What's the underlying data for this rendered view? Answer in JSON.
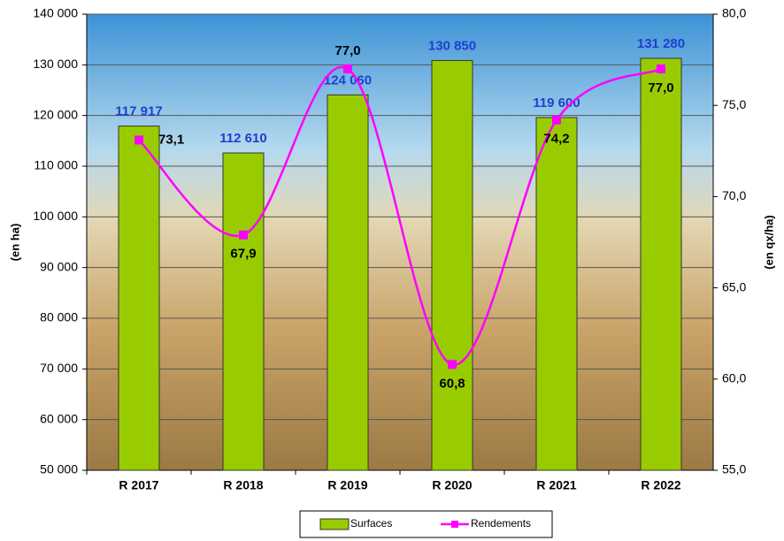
{
  "chart_data": {
    "type": "bar",
    "categories": [
      "R 2017",
      "R 2018",
      "R 2019",
      "R 2020",
      "R 2021",
      "R 2022"
    ],
    "series": [
      {
        "name": "Surfaces",
        "type": "bar",
        "color": "#99cc00",
        "values": [
          117917,
          112610,
          124060,
          130850,
          119600,
          131280
        ],
        "value_labels": [
          "117 917",
          "112 610",
          "124 060",
          "130 850",
          "119 600",
          "131 280"
        ]
      },
      {
        "name": "Rendements",
        "type": "line",
        "axis": "y2",
        "color": "#ff00ff",
        "values": [
          73.1,
          67.9,
          77.0,
          60.8,
          74.2,
          77.0
        ],
        "value_labels": [
          "73,1",
          "67,9",
          "77,0",
          "60,8",
          "74,2",
          "77,0"
        ]
      }
    ],
    "y_label": "(en ha)",
    "y2_label": "(en qx/ha)",
    "ylim": [
      50000,
      140000
    ],
    "yticks": [
      {
        "value": 50000,
        "label": "50 000"
      },
      {
        "value": 60000,
        "label": "60 000"
      },
      {
        "value": 70000,
        "label": "70 000"
      },
      {
        "value": 80000,
        "label": "80 000"
      },
      {
        "value": 90000,
        "label": "90 000"
      },
      {
        "value": 100000,
        "label": "100 000"
      },
      {
        "value": 110000,
        "label": "110 000"
      },
      {
        "value": 120000,
        "label": "120 000"
      },
      {
        "value": 130000,
        "label": "130 000"
      },
      {
        "value": 140000,
        "label": "140 000"
      }
    ],
    "y2lim": [
      55,
      80
    ],
    "y2ticks": [
      {
        "value": 55,
        "label": "55,0"
      },
      {
        "value": 60,
        "label": "60,0"
      },
      {
        "value": 65,
        "label": "65,0"
      },
      {
        "value": 70,
        "label": "70,0"
      },
      {
        "value": 75,
        "label": "75,0"
      },
      {
        "value": 80,
        "label": "80,0"
      }
    ],
    "grid": true,
    "legend": "bottom"
  }
}
